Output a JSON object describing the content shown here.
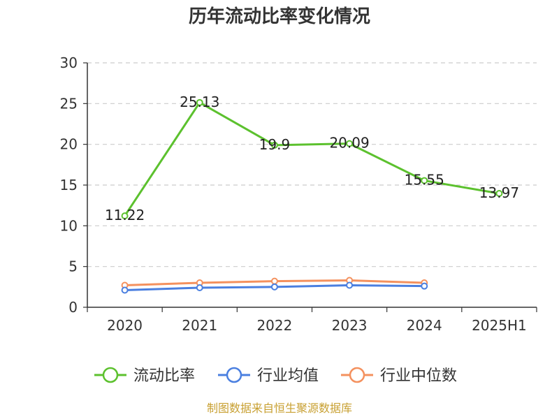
{
  "chart_data": {
    "type": "line",
    "title": "历年流动比率变化情况",
    "categories": [
      "2020",
      "2021",
      "2022",
      "2023",
      "2024",
      "2025H1"
    ],
    "ylim": [
      0,
      30
    ],
    "yticks": [
      0,
      5,
      10,
      15,
      20,
      25,
      30
    ],
    "grid": true,
    "legend_position": "bottom",
    "series": [
      {
        "name": "流动比率",
        "color": "#5cc12e",
        "values": [
          11.22,
          25.13,
          19.9,
          20.09,
          15.55,
          13.97
        ],
        "labels": [
          "11.22",
          "25.13",
          "19.9",
          "20.09",
          "15.55",
          "13.97"
        ]
      },
      {
        "name": "行业均值",
        "color": "#4a7fe0",
        "values": [
          2.1,
          2.4,
          2.5,
          2.7,
          2.6,
          null
        ]
      },
      {
        "name": "行业中位数",
        "color": "#f4915e",
        "values": [
          2.7,
          3.0,
          3.2,
          3.3,
          3.0,
          null
        ]
      }
    ],
    "source": "制图数据来自恒生聚源数据库"
  }
}
